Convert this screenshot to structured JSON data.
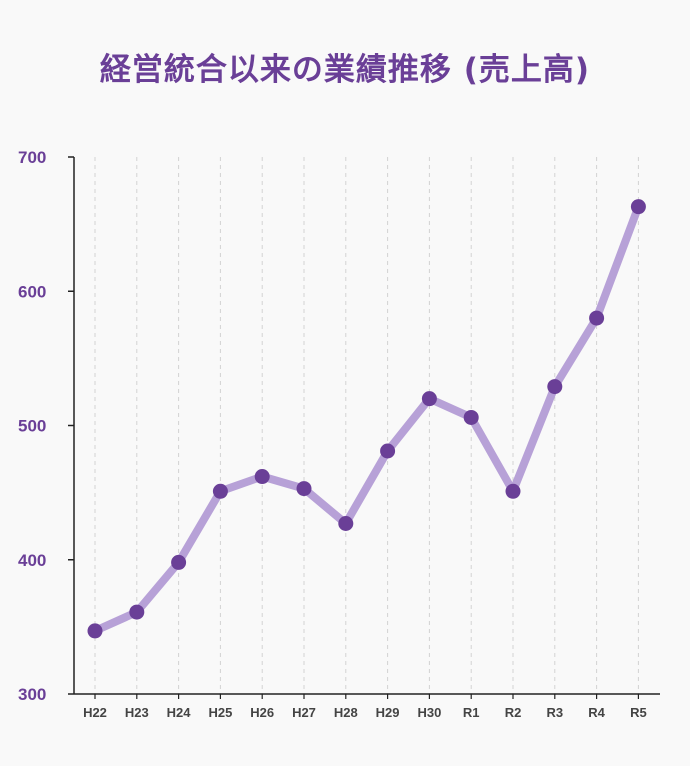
{
  "chart_data": {
    "type": "line",
    "title": "経営統合以来の業績推移 (売上高)",
    "xlabel": "",
    "ylabel": "",
    "categories": [
      "H22",
      "H23",
      "H24",
      "H25",
      "H26",
      "H27",
      "H28",
      "H29",
      "H30",
      "R1",
      "R2",
      "R3",
      "R4",
      "R5"
    ],
    "series": [
      {
        "name": "",
        "values": [
          347,
          361,
          398,
          451,
          462,
          453,
          427,
          481,
          520,
          506,
          451,
          529,
          580,
          663
        ]
      }
    ],
    "ylim": [
      300,
      700
    ],
    "yticks": [
      "300",
      "400",
      "500",
      "600",
      "700"
    ],
    "grid": "vertical dashed",
    "legend": "none"
  },
  "colors": {
    "line": "#b7a1d7",
    "marker": "#6a3f97",
    "accent_text": "#6a3f97",
    "axis": "#222222",
    "grid": "#d2d2d2"
  }
}
